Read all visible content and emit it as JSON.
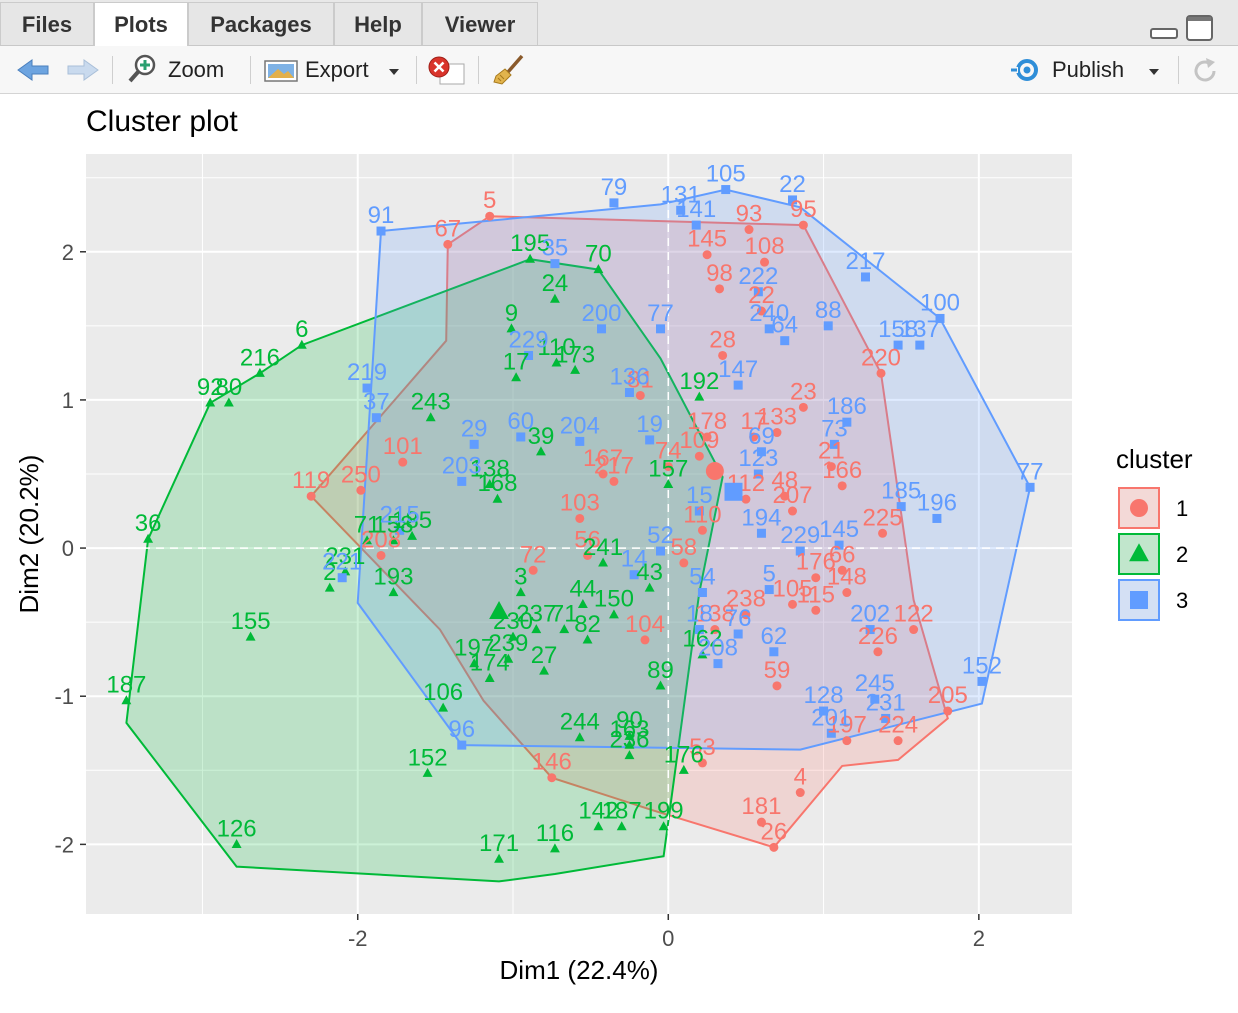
{
  "tabs": [
    {
      "label": "Files",
      "active": false
    },
    {
      "label": "Plots",
      "active": true
    },
    {
      "label": "Packages",
      "active": false
    },
    {
      "label": "Help",
      "active": false
    },
    {
      "label": "Viewer",
      "active": false
    }
  ],
  "toolbar": {
    "zoom_label": "Zoom",
    "export_label": "Export",
    "publish_label": "Publish"
  },
  "chart_data": {
    "type": "scatter",
    "title": "Cluster plot",
    "xlabel": "Dim1 (22.4%)",
    "ylabel": "Dim2 (20.2%)",
    "xlim": [
      -3.75,
      2.6
    ],
    "ylim": [
      -2.47,
      2.66
    ],
    "xticks": [
      -2,
      0,
      2
    ],
    "yticks": [
      -2,
      -1,
      0,
      1,
      2
    ],
    "grid": true,
    "legend_title": "cluster",
    "legend_position": "right",
    "clusters": [
      {
        "name": "1",
        "color": "#F8766D",
        "shape": "circle",
        "hull": [
          [
            -2.3,
            0.35
          ],
          [
            -1.43,
            1.4
          ],
          [
            -1.42,
            2.05
          ],
          [
            -1.15,
            2.24
          ],
          [
            0.87,
            2.18
          ],
          [
            1.37,
            1.18
          ],
          [
            1.58,
            -0.35
          ],
          [
            1.8,
            -1.15
          ],
          [
            1.48,
            -1.43
          ],
          [
            1.12,
            -1.47
          ],
          [
            0.68,
            -2.02
          ],
          [
            -0.1,
            -1.77
          ],
          [
            -0.75,
            -1.55
          ],
          [
            -1.19,
            -1.03
          ],
          [
            -1.47,
            -0.55
          ]
        ],
        "center": [
          0.3,
          0.52
        ],
        "points": [
          {
            "label": "5",
            "x": -1.15,
            "y": 2.24
          },
          {
            "label": "67",
            "x": -1.42,
            "y": 2.05
          },
          {
            "label": "93",
            "x": 0.52,
            "y": 2.15
          },
          {
            "label": "95",
            "x": 0.87,
            "y": 2.18
          },
          {
            "label": "145",
            "x": 0.25,
            "y": 1.98
          },
          {
            "label": "108",
            "x": 0.62,
            "y": 1.93
          },
          {
            "label": "98",
            "x": 0.33,
            "y": 1.75
          },
          {
            "label": "22",
            "x": 0.6,
            "y": 1.6
          },
          {
            "label": "28",
            "x": 0.35,
            "y": 1.3
          },
          {
            "label": "220",
            "x": 1.37,
            "y": 1.18
          },
          {
            "label": "81",
            "x": -0.18,
            "y": 1.03
          },
          {
            "label": "23",
            "x": 0.87,
            "y": 0.95
          },
          {
            "label": "17",
            "x": 0.55,
            "y": 0.75
          },
          {
            "label": "133",
            "x": 0.7,
            "y": 0.78
          },
          {
            "label": "178",
            "x": 0.25,
            "y": 0.75
          },
          {
            "label": "109",
            "x": 0.2,
            "y": 0.62
          },
          {
            "label": "101",
            "x": -1.71,
            "y": 0.58
          },
          {
            "label": "250",
            "x": -1.98,
            "y": 0.39
          },
          {
            "label": "119",
            "x": -2.3,
            "y": 0.35
          },
          {
            "label": "167",
            "x": -0.42,
            "y": 0.5
          },
          {
            "label": "217",
            "x": -0.35,
            "y": 0.45
          },
          {
            "label": "74",
            "x": 0.0,
            "y": 0.55
          },
          {
            "label": "21",
            "x": 1.05,
            "y": 0.55
          },
          {
            "label": "166",
            "x": 1.12,
            "y": 0.42
          },
          {
            "label": "48",
            "x": 0.75,
            "y": 0.35
          },
          {
            "label": "112",
            "x": 0.5,
            "y": 0.33
          },
          {
            "label": "207",
            "x": 0.8,
            "y": 0.25
          },
          {
            "label": "103",
            "x": -0.57,
            "y": 0.2
          },
          {
            "label": "110",
            "x": 0.22,
            "y": 0.12
          },
          {
            "label": "225",
            "x": 1.38,
            "y": 0.1
          },
          {
            "label": "72",
            "x": -0.87,
            "y": -0.15
          },
          {
            "label": "56",
            "x": -0.52,
            "y": -0.05
          },
          {
            "label": "208",
            "x": -1.85,
            "y": -0.05
          },
          {
            "label": "58",
            "x": 0.1,
            "y": -0.1
          },
          {
            "label": "66",
            "x": 1.12,
            "y": -0.15
          },
          {
            "label": "148",
            "x": 1.15,
            "y": -0.3
          },
          {
            "label": "176",
            "x": 0.95,
            "y": -0.2
          },
          {
            "label": "115",
            "x": 0.95,
            "y": -0.42
          },
          {
            "label": "105",
            "x": 0.8,
            "y": -0.38
          },
          {
            "label": "238",
            "x": 0.5,
            "y": -0.45
          },
          {
            "label": "104",
            "x": -0.15,
            "y": -0.62
          },
          {
            "label": "138",
            "x": 0.3,
            "y": -0.55
          },
          {
            "label": "122",
            "x": 1.58,
            "y": -0.55
          },
          {
            "label": "226",
            "x": 1.35,
            "y": -0.7
          },
          {
            "label": "59",
            "x": 0.7,
            "y": -0.93
          },
          {
            "label": "205",
            "x": 1.8,
            "y": -1.1
          },
          {
            "label": "197",
            "x": 1.15,
            "y": -1.3
          },
          {
            "label": "224",
            "x": 1.48,
            "y": -1.3
          },
          {
            "label": "53",
            "x": 0.22,
            "y": -1.45
          },
          {
            "label": "146",
            "x": -0.75,
            "y": -1.55
          },
          {
            "label": "4",
            "x": 0.85,
            "y": -1.65
          },
          {
            "label": "181",
            "x": 0.6,
            "y": -1.85
          },
          {
            "label": "26",
            "x": 0.68,
            "y": -2.02
          }
        ]
      },
      {
        "name": "2",
        "color": "#00BA38",
        "shape": "triangle",
        "hull": [
          [
            -3.49,
            -1.18
          ],
          [
            -3.35,
            0.06
          ],
          [
            -2.95,
            0.98
          ],
          [
            -2.63,
            1.18
          ],
          [
            -2.36,
            1.37
          ],
          [
            -0.89,
            1.95
          ],
          [
            -0.45,
            1.88
          ],
          [
            -0.05,
            1.28
          ],
          [
            0.35,
            0.48
          ],
          [
            0.2,
            -0.3
          ],
          [
            -0.03,
            -2.08
          ],
          [
            -0.73,
            -2.2
          ],
          [
            -1.09,
            -2.25
          ],
          [
            -2.78,
            -2.15
          ]
        ],
        "center": [
          -1.09,
          -0.43
        ],
        "points": [
          {
            "label": "6",
            "x": -2.36,
            "y": 1.37
          },
          {
            "label": "216",
            "x": -2.63,
            "y": 1.18
          },
          {
            "label": "92",
            "x": -2.95,
            "y": 0.98
          },
          {
            "label": "80",
            "x": -2.83,
            "y": 0.98
          },
          {
            "label": "36",
            "x": -3.35,
            "y": 0.06
          },
          {
            "label": "195",
            "x": -0.89,
            "y": 1.95
          },
          {
            "label": "70",
            "x": -0.45,
            "y": 1.88
          },
          {
            "label": "24",
            "x": -0.73,
            "y": 1.68
          },
          {
            "label": "9",
            "x": -1.01,
            "y": 1.48
          },
          {
            "label": "110",
            "x": -0.72,
            "y": 1.25
          },
          {
            "label": "173",
            "x": -0.6,
            "y": 1.2
          },
          {
            "label": "17",
            "x": -0.98,
            "y": 1.15
          },
          {
            "label": "243",
            "x": -1.53,
            "y": 0.88
          },
          {
            "label": "39",
            "x": -0.82,
            "y": 0.65
          },
          {
            "label": "192",
            "x": 0.2,
            "y": 1.02
          },
          {
            "label": "157",
            "x": 0.0,
            "y": 0.43
          },
          {
            "label": "138",
            "x": -1.15,
            "y": 0.43
          },
          {
            "label": "168",
            "x": -1.1,
            "y": 0.33
          },
          {
            "label": "71",
            "x": -1.94,
            "y": 0.05
          },
          {
            "label": "158",
            "x": -1.77,
            "y": 0.05
          },
          {
            "label": "185",
            "x": -1.65,
            "y": 0.08
          },
          {
            "label": "231",
            "x": -2.08,
            "y": -0.16
          },
          {
            "label": "193",
            "x": -1.77,
            "y": -0.3
          },
          {
            "label": "241",
            "x": -0.42,
            "y": -0.1
          },
          {
            "label": "2",
            "x": -2.18,
            "y": -0.27
          },
          {
            "label": "3",
            "x": -0.95,
            "y": -0.3
          },
          {
            "label": "43",
            "x": -0.12,
            "y": -0.27
          },
          {
            "label": "44",
            "x": -0.55,
            "y": -0.38
          },
          {
            "label": "150",
            "x": -0.35,
            "y": -0.45
          },
          {
            "label": "237",
            "x": -0.85,
            "y": -0.55
          },
          {
            "label": "71",
            "x": -0.67,
            "y": -0.55
          },
          {
            "label": "82",
            "x": -0.52,
            "y": -0.62
          },
          {
            "label": "230",
            "x": -1.0,
            "y": -0.6
          },
          {
            "label": "155",
            "x": -2.69,
            "y": -0.6
          },
          {
            "label": "162",
            "x": 0.22,
            "y": -0.72
          },
          {
            "label": "197",
            "x": -1.25,
            "y": -0.78
          },
          {
            "label": "239",
            "x": -1.03,
            "y": -0.75
          },
          {
            "label": "174",
            "x": -1.15,
            "y": -0.88
          },
          {
            "label": "27",
            "x": -0.8,
            "y": -0.83
          },
          {
            "label": "89",
            "x": -0.05,
            "y": -0.93
          },
          {
            "label": "187",
            "x": -3.49,
            "y": -1.03
          },
          {
            "label": "106",
            "x": -1.45,
            "y": -1.08
          },
          {
            "label": "244",
            "x": -0.57,
            "y": -1.28
          },
          {
            "label": "90",
            "x": -0.25,
            "y": -1.27
          },
          {
            "label": "163",
            "x": -0.25,
            "y": -1.33
          },
          {
            "label": "236",
            "x": -0.25,
            "y": -1.4
          },
          {
            "label": "176",
            "x": 0.1,
            "y": -1.5
          },
          {
            "label": "152",
            "x": -1.55,
            "y": -1.52
          },
          {
            "label": "142",
            "x": -0.45,
            "y": -1.88
          },
          {
            "label": "187",
            "x": -0.3,
            "y": -1.88
          },
          {
            "label": "199",
            "x": -0.03,
            "y": -1.88
          },
          {
            "label": "126",
            "x": -2.78,
            "y": -2.0
          },
          {
            "label": "171",
            "x": -1.09,
            "y": -2.1
          },
          {
            "label": "116",
            "x": -0.73,
            "y": -2.03
          }
        ]
      },
      {
        "name": "3",
        "color": "#619CFF",
        "shape": "square",
        "hull": [
          [
            -1.85,
            2.14
          ],
          [
            -0.05,
            2.32
          ],
          [
            0.37,
            2.42
          ],
          [
            0.85,
            2.3
          ],
          [
            1.75,
            1.55
          ],
          [
            2.33,
            0.41
          ],
          [
            2.02,
            -1.05
          ],
          [
            0.85,
            -1.36
          ],
          [
            -1.33,
            -1.33
          ],
          [
            -2.0,
            -0.37
          ]
        ],
        "center": [
          0.42,
          0.38
        ],
        "points": [
          {
            "label": "91",
            "x": -1.85,
            "y": 2.14
          },
          {
            "label": "79",
            "x": -0.35,
            "y": 2.33
          },
          {
            "label": "105",
            "x": 0.37,
            "y": 2.42
          },
          {
            "label": "22",
            "x": 0.8,
            "y": 2.35
          },
          {
            "label": "131",
            "x": 0.08,
            "y": 2.28
          },
          {
            "label": "141",
            "x": 0.18,
            "y": 2.18
          },
          {
            "label": "35",
            "x": -0.73,
            "y": 1.92
          },
          {
            "label": "217",
            "x": 1.27,
            "y": 1.83
          },
          {
            "label": "100",
            "x": 1.75,
            "y": 1.55
          },
          {
            "label": "222",
            "x": 0.58,
            "y": 1.73
          },
          {
            "label": "200",
            "x": -0.43,
            "y": 1.48
          },
          {
            "label": "77",
            "x": -0.05,
            "y": 1.48
          },
          {
            "label": "88",
            "x": 1.03,
            "y": 1.5
          },
          {
            "label": "158",
            "x": 1.48,
            "y": 1.37
          },
          {
            "label": "137",
            "x": 1.62,
            "y": 1.37
          },
          {
            "label": "240",
            "x": 0.65,
            "y": 1.48
          },
          {
            "label": "64",
            "x": 0.75,
            "y": 1.4
          },
          {
            "label": "219",
            "x": -1.94,
            "y": 1.08
          },
          {
            "label": "229",
            "x": -0.9,
            "y": 1.3
          },
          {
            "label": "147",
            "x": 0.45,
            "y": 1.1
          },
          {
            "label": "37",
            "x": -1.88,
            "y": 0.88
          },
          {
            "label": "136",
            "x": -0.25,
            "y": 1.05
          },
          {
            "label": "186",
            "x": 1.15,
            "y": 0.85
          },
          {
            "label": "29",
            "x": -1.25,
            "y": 0.7
          },
          {
            "label": "60",
            "x": -0.95,
            "y": 0.75
          },
          {
            "label": "204",
            "x": -0.57,
            "y": 0.72
          },
          {
            "label": "19",
            "x": -0.12,
            "y": 0.73
          },
          {
            "label": "73",
            "x": 1.07,
            "y": 0.7
          },
          {
            "label": "69",
            "x": 0.6,
            "y": 0.65
          },
          {
            "label": "203",
            "x": -1.33,
            "y": 0.45
          },
          {
            "label": "123",
            "x": 0.58,
            "y": 0.5
          },
          {
            "label": "77",
            "x": 2.33,
            "y": 0.41
          },
          {
            "label": "215",
            "x": -1.73,
            "y": 0.12
          },
          {
            "label": "15",
            "x": 0.2,
            "y": 0.25
          },
          {
            "label": "185",
            "x": 1.5,
            "y": 0.28
          },
          {
            "label": "196",
            "x": 1.73,
            "y": 0.2
          },
          {
            "label": "194",
            "x": 0.6,
            "y": 0.1
          },
          {
            "label": "145",
            "x": 1.1,
            "y": 0.02
          },
          {
            "label": "229",
            "x": 0.85,
            "y": -0.02
          },
          {
            "label": "14",
            "x": -0.22,
            "y": -0.18
          },
          {
            "label": "52",
            "x": -0.05,
            "y": -0.02
          },
          {
            "label": "221",
            "x": -2.1,
            "y": -0.2
          },
          {
            "label": "5",
            "x": 0.65,
            "y": -0.28
          },
          {
            "label": "54",
            "x": 0.22,
            "y": -0.3
          },
          {
            "label": "18",
            "x": 0.2,
            "y": -0.55
          },
          {
            "label": "62",
            "x": 0.68,
            "y": -0.7
          },
          {
            "label": "202",
            "x": 1.3,
            "y": -0.55
          },
          {
            "label": "208",
            "x": 0.32,
            "y": -0.78
          },
          {
            "label": "76",
            "x": 0.45,
            "y": -0.58
          },
          {
            "label": "152",
            "x": 2.02,
            "y": -0.9
          },
          {
            "label": "128",
            "x": 1.0,
            "y": -1.1
          },
          {
            "label": "245",
            "x": 1.33,
            "y": -1.02
          },
          {
            "label": "231",
            "x": 1.4,
            "y": -1.15
          },
          {
            "label": "201",
            "x": 1.05,
            "y": -1.25
          },
          {
            "label": "96",
            "x": -1.33,
            "y": -1.33
          }
        ]
      }
    ]
  }
}
